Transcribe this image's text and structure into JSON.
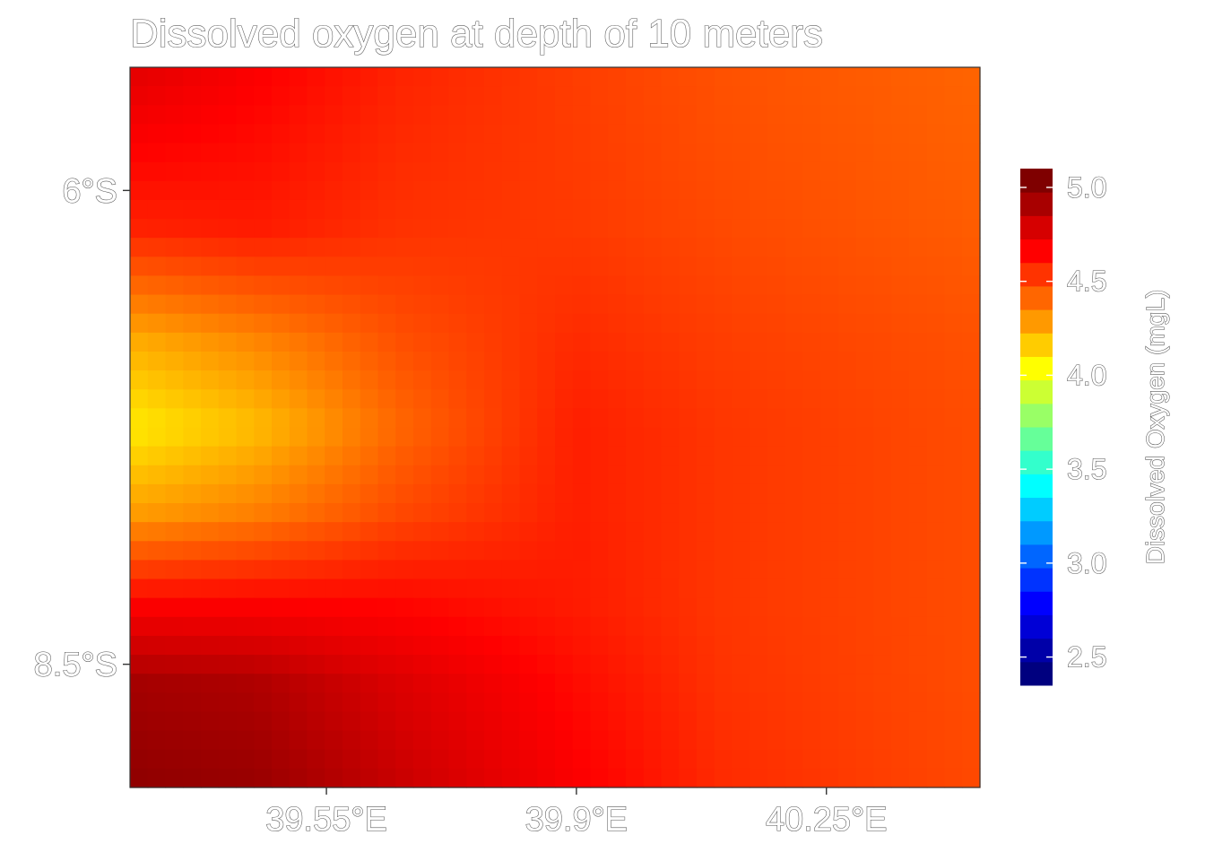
{
  "chart_data": {
    "type": "heatmap",
    "title": "Dissolved oxygen at depth of 10 meters",
    "x_axis": {
      "range": [
        39.275,
        40.465
      ],
      "ticks": [
        {
          "value": 39.55,
          "label": "39.55°E"
        },
        {
          "value": 39.9,
          "label": "39.9°E"
        },
        {
          "value": 40.25,
          "label": "40.25°E"
        }
      ]
    },
    "y_axis": {
      "range": [
        -9.15,
        -5.35
      ],
      "ticks": [
        {
          "value": -6.0,
          "label": "6°S"
        },
        {
          "value": -8.5,
          "label": "8.5°S"
        }
      ]
    },
    "grid": false,
    "legend": {
      "title": "Dissolved Oxygen (mgL)",
      "placement": "right",
      "range": [
        2.35,
        5.1
      ],
      "ticks": [
        {
          "value": 5.0,
          "label": "5.0"
        },
        {
          "value": 4.5,
          "label": "4.5"
        },
        {
          "value": 4.0,
          "label": "4.0"
        },
        {
          "value": 3.5,
          "label": "3.5"
        },
        {
          "value": 3.0,
          "label": "3.0"
        },
        {
          "value": 2.5,
          "label": "2.5"
        }
      ],
      "colors": [
        "#00007f",
        "#0000a8",
        "#0000d6",
        "#0000ff",
        "#0033ff",
        "#0066ff",
        "#0099ff",
        "#00ccff",
        "#00ffff",
        "#33ffcc",
        "#66ff99",
        "#99ff66",
        "#ccff33",
        "#ffff00",
        "#ffcc00",
        "#ff9900",
        "#ff6600",
        "#ff3300",
        "#ff0000",
        "#d60000",
        "#a80000",
        "#7f0000"
      ]
    },
    "surface": {
      "rows_lat": [
        -5.35,
        -6.2,
        -6.8,
        -7.25,
        -7.7,
        -8.2,
        -8.6,
        -9.15
      ],
      "cols_lon": [
        39.275,
        39.45,
        39.65,
        39.9,
        40.1,
        40.465
      ],
      "values": [
        [
          4.8,
          4.72,
          4.62,
          4.55,
          4.5,
          4.45
        ],
        [
          4.62,
          4.64,
          4.58,
          4.56,
          4.52,
          4.47
        ],
        [
          4.26,
          4.36,
          4.5,
          4.6,
          4.55,
          4.5
        ],
        [
          4.1,
          4.22,
          4.44,
          4.63,
          4.57,
          4.51
        ],
        [
          4.3,
          4.38,
          4.52,
          4.63,
          4.57,
          4.51
        ],
        [
          4.72,
          4.72,
          4.7,
          4.64,
          4.57,
          4.51
        ],
        [
          4.98,
          4.95,
          4.82,
          4.68,
          4.58,
          4.51
        ],
        [
          5.05,
          5.02,
          4.88,
          4.72,
          4.6,
          4.52
        ]
      ]
    }
  }
}
